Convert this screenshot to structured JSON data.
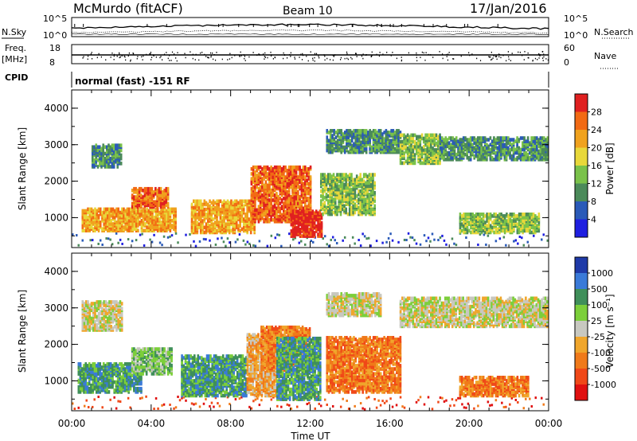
{
  "header": {
    "station": "McMurdo (fitACF)",
    "beam": "Beam 10",
    "date": "17/Jan/2016"
  },
  "top_panels": {
    "nsky_label": "N.Sky",
    "nsky_ticks": [
      "10^5",
      "10^0"
    ],
    "nsearch_label": "N.Search",
    "nsearch_ticks": [
      "10^5",
      "10^0"
    ],
    "freq_label_line1": "Freq.",
    "freq_label_line2": "[MHz]",
    "freq_ticks": [
      "18",
      "8"
    ],
    "nave_label": "Nave",
    "nave_ticks": [
      "60",
      "0"
    ],
    "cpid_label": "CPID",
    "cpid_text": "normal (fast) -151 RF"
  },
  "colors": {
    "power_scale": [
      "#1f1fe0",
      "#2a5ab8",
      "#4b8a5a",
      "#7ac24a",
      "#e8d83a",
      "#f0a21e",
      "#f26a14",
      "#e02020"
    ],
    "velocity_scale": [
      "#e01010",
      "#f04818",
      "#f07a1a",
      "#f0a62c",
      "#c8c8c0",
      "#7ccf3a",
      "#3f8f5a",
      "#3a7ad8",
      "#1f3aa8"
    ]
  },
  "chart_data": [
    {
      "type": "heatmap",
      "name": "power",
      "xlabel": "",
      "ylabel": "Slant Range [km]",
      "x_ticks": [
        "00:00",
        "04:00",
        "08:00",
        "12:00",
        "16:00",
        "20:00",
        "00:00"
      ],
      "y_ticks": [
        "4000",
        "3000",
        "2000",
        "1000"
      ],
      "ylim": [
        180,
        4500
      ],
      "colorbar_label": "Power [dB]",
      "colorbar_ticks": [
        "28",
        "24",
        "20",
        "16",
        "12",
        "8",
        "4"
      ],
      "regions": [
        {
          "t0": 0.5,
          "t1": 5.2,
          "r0": 650,
          "r1": 1250,
          "level": 5
        },
        {
          "t0": 3.0,
          "t1": 4.8,
          "r0": 1300,
          "r1": 1800,
          "level": 6
        },
        {
          "t0": 1.0,
          "t1": 2.5,
          "r0": 2400,
          "r1": 3000,
          "level": 2
        },
        {
          "t0": 6.0,
          "t1": 9.2,
          "r0": 600,
          "r1": 1500,
          "level": 5
        },
        {
          "t0": 9.0,
          "t1": 12.0,
          "r0": 900,
          "r1": 2400,
          "level": 6
        },
        {
          "t0": 11.0,
          "t1": 12.6,
          "r0": 500,
          "r1": 1200,
          "level": 7
        },
        {
          "t0": 12.5,
          "t1": 15.2,
          "r0": 1100,
          "r1": 2200,
          "level": 3
        },
        {
          "t0": 12.8,
          "t1": 16.5,
          "r0": 2800,
          "r1": 3400,
          "level": 2
        },
        {
          "t0": 16.5,
          "t1": 18.5,
          "r0": 2500,
          "r1": 3300,
          "level": 3
        },
        {
          "t0": 18.5,
          "t1": 23.9,
          "r0": 2600,
          "r1": 3200,
          "level": 2
        },
        {
          "t0": 19.5,
          "t1": 23.5,
          "r0": 600,
          "r1": 1100,
          "level": 3
        }
      ]
    },
    {
      "type": "heatmap",
      "name": "velocity",
      "xlabel": "Time UT",
      "ylabel": "Slant Range [km]",
      "x_ticks": [
        "00:00",
        "04:00",
        "08:00",
        "12:00",
        "16:00",
        "20:00",
        "00:00"
      ],
      "y_ticks": [
        "4000",
        "3000",
        "2000",
        "1000"
      ],
      "ylim": [
        180,
        4500
      ],
      "colorbar_label": "Velocity [m s⁻¹]",
      "colorbar_ticks": [
        "1000",
        "500",
        "100",
        "25",
        "-25",
        "-100",
        "-500",
        "-1000"
      ],
      "regions": [
        {
          "t0": 0.3,
          "t1": 3.5,
          "r0": 700,
          "r1": 1500,
          "level": 6
        },
        {
          "t0": 3.0,
          "t1": 5.0,
          "r0": 1200,
          "r1": 1900,
          "level": 5
        },
        {
          "t0": 0.5,
          "t1": 2.5,
          "r0": 2400,
          "r1": 3200,
          "level": 4
        },
        {
          "t0": 5.5,
          "t1": 8.8,
          "r0": 600,
          "r1": 1700,
          "level": 6
        },
        {
          "t0": 8.8,
          "t1": 10.3,
          "r0": 600,
          "r1": 2300,
          "level": 3
        },
        {
          "t0": 9.5,
          "t1": 12.0,
          "r0": 1300,
          "r1": 2500,
          "level": 2
        },
        {
          "t0": 10.3,
          "t1": 12.5,
          "r0": 500,
          "r1": 2200,
          "level": 6
        },
        {
          "t0": 12.8,
          "t1": 16.5,
          "r0": 700,
          "r1": 2200,
          "level": 2
        },
        {
          "t0": 12.8,
          "t1": 15.5,
          "r0": 2800,
          "r1": 3400,
          "level": 4
        },
        {
          "t0": 16.5,
          "t1": 23.9,
          "r0": 2500,
          "r1": 3300,
          "level": 4
        },
        {
          "t0": 19.5,
          "t1": 23.0,
          "r0": 600,
          "r1": 1100,
          "level": 2
        }
      ]
    }
  ]
}
